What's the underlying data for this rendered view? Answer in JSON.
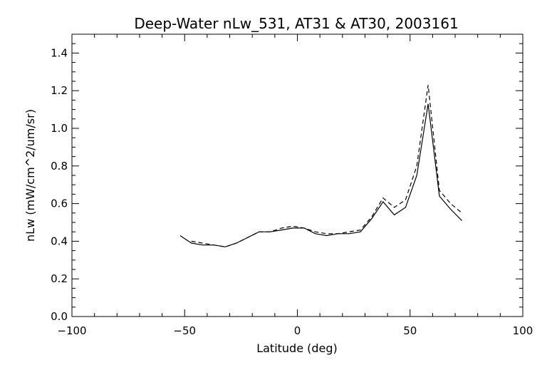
{
  "chart_data": {
    "type": "line",
    "title": "Deep-Water nLw_531, AT31 & AT30, 2003161",
    "xlabel": "Latitude (deg)",
    "ylabel": "nLw (mW/cm^2/um/sr)",
    "xlim": [
      -100,
      100
    ],
    "ylim": [
      0.0,
      1.5
    ],
    "xticks": [
      -100,
      -50,
      0,
      50,
      100
    ],
    "xtick_labels": [
      "−100",
      "−50",
      "0",
      "50",
      "100"
    ],
    "yticks": [
      0.0,
      0.2,
      0.4,
      0.6,
      0.8,
      1.0,
      1.2,
      1.4
    ],
    "ytick_labels": [
      "0.0",
      "0.2",
      "0.4",
      "0.6",
      "0.8",
      "1.0",
      "1.2",
      "1.4"
    ],
    "grid": false,
    "series": [
      {
        "style": "solid",
        "x": [
          -52,
          -47,
          -42,
          -37,
          -32,
          -27,
          -22,
          -17,
          -12,
          -7,
          -2,
          3,
          8,
          13,
          18,
          23,
          28,
          33,
          38,
          43,
          48,
          53,
          58,
          63,
          68,
          73
        ],
        "y": [
          0.43,
          0.39,
          0.38,
          0.38,
          0.37,
          0.39,
          0.42,
          0.45,
          0.45,
          0.46,
          0.47,
          0.47,
          0.44,
          0.43,
          0.44,
          0.44,
          0.45,
          0.52,
          0.61,
          0.54,
          0.58,
          0.75,
          1.13,
          0.64,
          0.57,
          0.51
        ]
      },
      {
        "style": "dashed",
        "x": [
          -47,
          -42,
          -37,
          -32,
          -27,
          -22,
          -17,
          -12,
          -7,
          -2,
          3,
          8,
          13,
          18,
          23,
          28,
          33,
          38,
          43,
          48,
          53,
          58,
          63,
          68,
          73
        ],
        "y": [
          0.4,
          0.39,
          0.38,
          0.37,
          0.39,
          0.42,
          0.45,
          0.45,
          0.47,
          0.48,
          0.47,
          0.45,
          0.44,
          0.44,
          0.45,
          0.46,
          0.53,
          0.63,
          0.58,
          0.62,
          0.8,
          1.23,
          0.67,
          0.6,
          0.55
        ]
      }
    ]
  }
}
